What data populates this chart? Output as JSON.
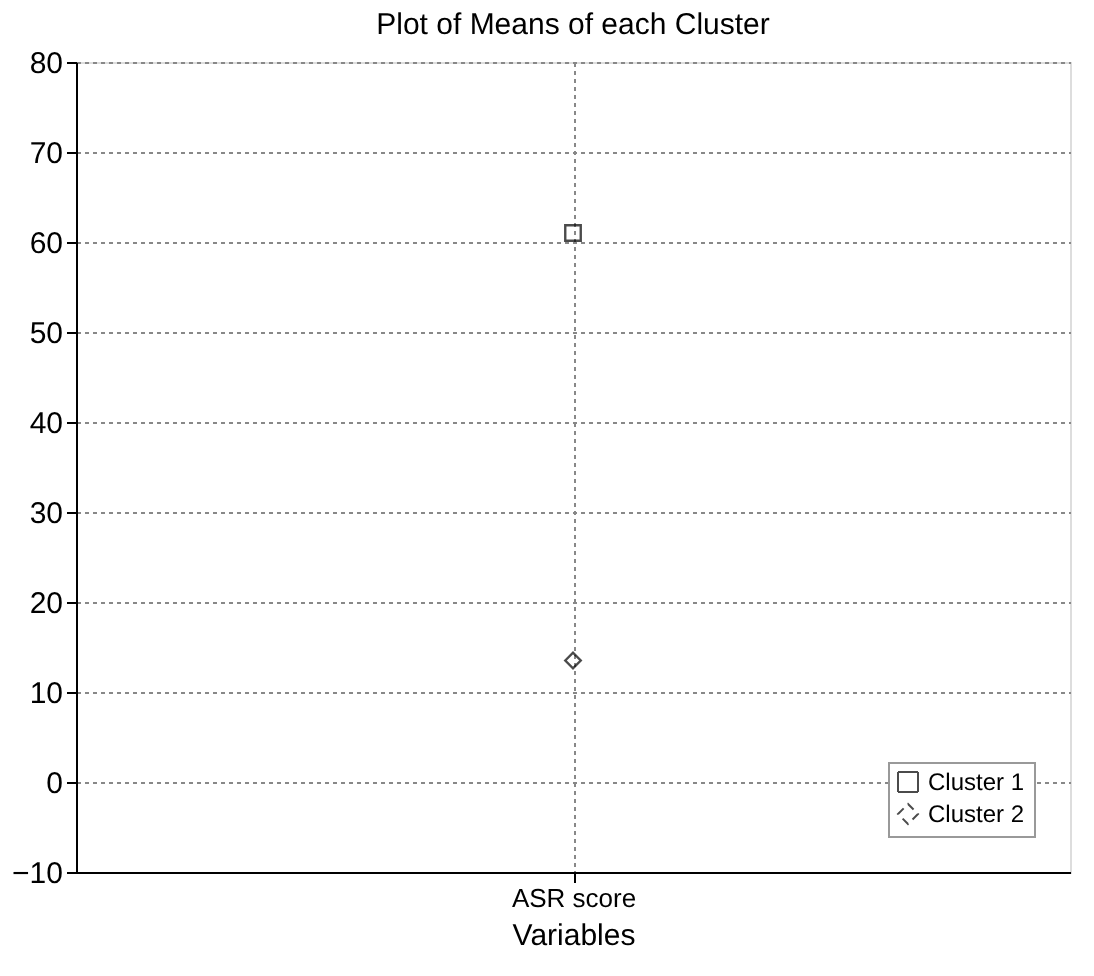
{
  "chart_data": {
    "type": "line",
    "title": "Plot of Means of each Cluster",
    "xlabel": "Variables",
    "categories": [
      "ASR score"
    ],
    "series": [
      {
        "name": "Cluster 1",
        "color": "#000000",
        "values": [
          61
        ],
        "marker": "square",
        "line_style": "solid"
      },
      {
        "name": "Cluster 2",
        "color": "#000000",
        "values": [
          13.5
        ],
        "marker": "diamond",
        "line_style": "dashed"
      }
    ],
    "ylim": [
      -10,
      80
    ],
    "yticks": [
      -10,
      0,
      10,
      20,
      30,
      40,
      50,
      60,
      70,
      80
    ],
    "grid": true,
    "legend": "bottom right"
  }
}
